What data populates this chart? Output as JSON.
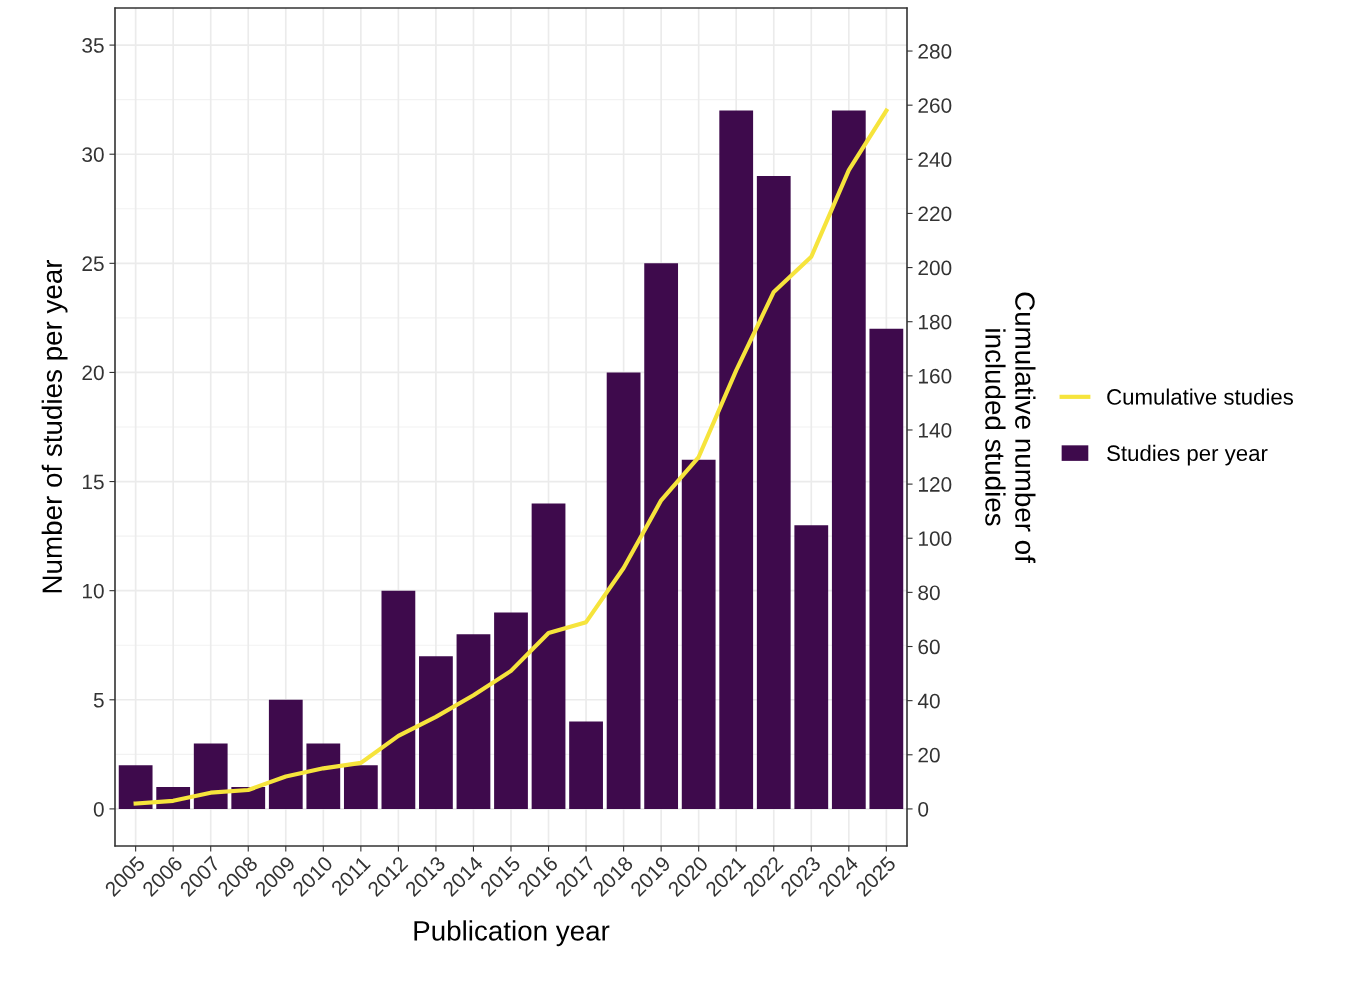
{
  "chart_data": {
    "type": "bar",
    "xlabel": "Publication year",
    "ylabel": "Number of studies per year",
    "y2label": "Cumulative number of\nincluded studies",
    "categories": [
      "2005",
      "2006",
      "2007",
      "2008",
      "2009",
      "2010",
      "2011",
      "2012",
      "2013",
      "2014",
      "2015",
      "2016",
      "2017",
      "2018",
      "2019",
      "2020",
      "2021",
      "2022",
      "2023",
      "2024",
      "2025"
    ],
    "series": [
      {
        "name": "Studies per year",
        "color": "#3e0a4c",
        "values": [
          2,
          1,
          3,
          1,
          5,
          3,
          2,
          10,
          7,
          8,
          9,
          14,
          4,
          20,
          25,
          16,
          32,
          29,
          13,
          32,
          22
        ]
      },
      {
        "name": "Cumulative studies",
        "type": "line",
        "axis": "y2",
        "color": "#f6e43c",
        "values": [
          2,
          3,
          6,
          7,
          12,
          15,
          17,
          27,
          34,
          42,
          51,
          65,
          69,
          89,
          114,
          130,
          162,
          191,
          204,
          236,
          258
        ]
      }
    ],
    "ylim": [
      -1.7,
      36.7
    ],
    "yticks": [
      0,
      5,
      10,
      15,
      20,
      25,
      30,
      35
    ],
    "y2lim": [
      -13.7,
      295.9
    ],
    "y2ticks": [
      0,
      20,
      40,
      60,
      80,
      100,
      120,
      140,
      160,
      180,
      200,
      220,
      240,
      260,
      280
    ],
    "grid": true,
    "legend": "right",
    "marker": "none",
    "line_style": "solid"
  }
}
